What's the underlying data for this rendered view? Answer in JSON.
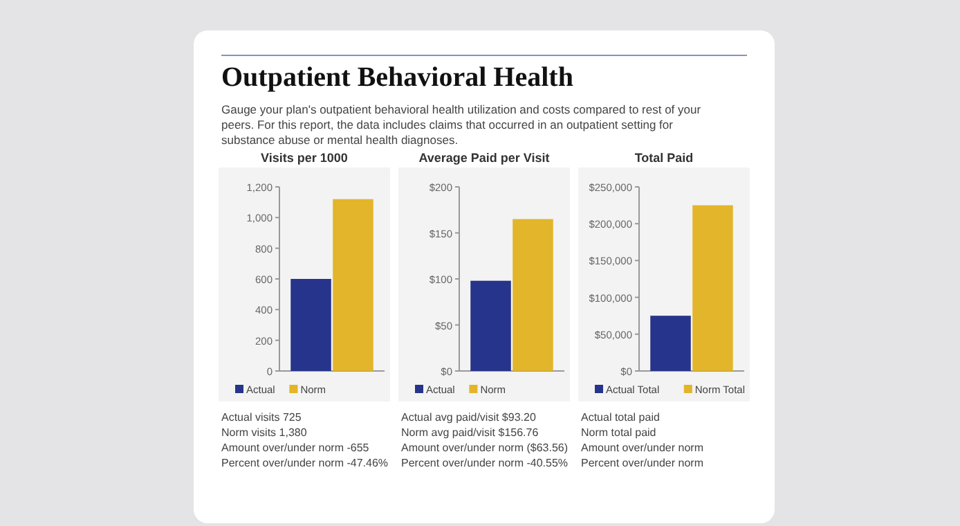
{
  "chart_data": [
    {
      "type": "other",
      "title": "Outpatient Behavioral Health",
      "subtitle": "Gauge your plan's outpatient behavioral health utilization and costs compared to rest of your peers. For this report, the data includes claims that occurred in an outpatient setting for substance abuse or mental health diagnoses."
    },
    {
      "type": "bar",
      "title": "Visits per 1000",
      "categories": [
        null
      ],
      "legend": "bottom",
      "series": [
        {
          "name": "Actual",
          "color": "#27348b",
          "values": [
            600
          ]
        },
        {
          "name": "Norm",
          "color": "#e2b52a",
          "values": [
            1120
          ]
        }
      ],
      "ylim": [
        0,
        1200
      ],
      "yticks": [
        0,
        200,
        400,
        600,
        800,
        {
          "value": 1000,
          "label": "1,000"
        },
        {
          "value": 1200,
          "label": "1,200"
        }
      ],
      "annotations": [
        "Actual visits 725",
        "Norm visits 1,380",
        "Amount over/under norm -655",
        "Percent over/under norm -47.46%"
      ]
    },
    {
      "type": "bar",
      "title": "Average Paid per Visit",
      "categories": [
        null
      ],
      "legend": "bottom",
      "series": [
        {
          "name": "Actual",
          "color": "#27348b",
          "values": [
            98
          ]
        },
        {
          "name": "Norm",
          "color": "#e2b52a",
          "values": [
            165
          ]
        }
      ],
      "ylim": [
        0,
        200
      ],
      "yticks": [
        {
          "value": 0,
          "label": "$0"
        },
        {
          "value": 50,
          "label": "$50"
        },
        {
          "value": 100,
          "label": "$100"
        },
        {
          "value": 150,
          "label": "$150"
        },
        {
          "value": 200,
          "label": "$200"
        }
      ],
      "annotations": [
        "Actual avg paid/visit $93.20",
        "Norm avg paid/visit $156.76",
        "Amount over/under norm ($63.56)",
        "Percent over/under norm -40.55%"
      ]
    },
    {
      "type": "bar",
      "title": "Total Paid",
      "categories": [
        null
      ],
      "legend": "bottom",
      "series": [
        {
          "name": "Actual Total",
          "color": "#27348b",
          "values": [
            75000
          ]
        },
        {
          "name": "Norm Total",
          "color": "#e2b52a",
          "values": [
            225000
          ]
        }
      ],
      "ylim": [
        0,
        250000
      ],
      "yticks": [
        {
          "value": 0,
          "label": "$0"
        },
        {
          "value": 50000,
          "label": "$50,000"
        },
        {
          "value": 100000,
          "label": "$100,000"
        },
        {
          "value": 150000,
          "label": "$150,000"
        },
        {
          "value": 200000,
          "label": "$200,000"
        },
        {
          "value": 250000,
          "label": "$250,000"
        }
      ],
      "annotations": [
        "Actual total paid",
        "Norm total paid",
        "Amount over/under norm",
        "Percent over/under norm"
      ]
    }
  ]
}
